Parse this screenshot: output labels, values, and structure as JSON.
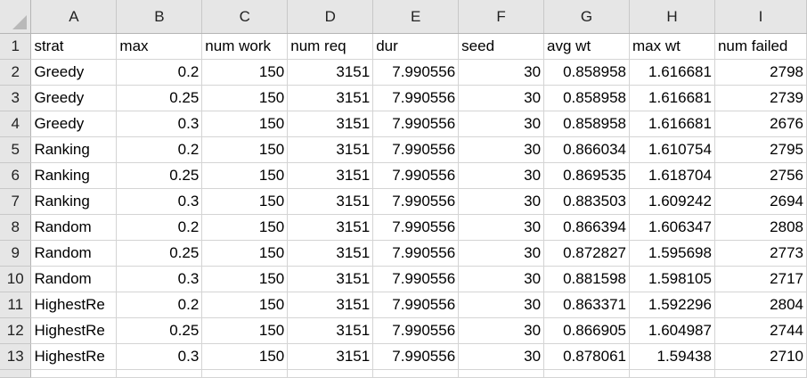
{
  "columns": [
    "A",
    "B",
    "C",
    "D",
    "E",
    "F",
    "G",
    "H",
    "I"
  ],
  "rows": [
    {
      "num": "1",
      "cells": [
        "strat",
        "max",
        "num work",
        "num req",
        "dur",
        "seed",
        "avg wt",
        "max wt",
        "num failed"
      ]
    },
    {
      "num": "2",
      "cells": [
        "Greedy",
        "0.2",
        "150",
        "3151",
        "7.990556",
        "30",
        "0.858958",
        "1.616681",
        "2798"
      ]
    },
    {
      "num": "3",
      "cells": [
        "Greedy",
        "0.25",
        "150",
        "3151",
        "7.990556",
        "30",
        "0.858958",
        "1.616681",
        "2739"
      ]
    },
    {
      "num": "4",
      "cells": [
        "Greedy",
        "0.3",
        "150",
        "3151",
        "7.990556",
        "30",
        "0.858958",
        "1.616681",
        "2676"
      ]
    },
    {
      "num": "5",
      "cells": [
        "Ranking",
        "0.2",
        "150",
        "3151",
        "7.990556",
        "30",
        "0.866034",
        "1.610754",
        "2795"
      ]
    },
    {
      "num": "6",
      "cells": [
        "Ranking",
        "0.25",
        "150",
        "3151",
        "7.990556",
        "30",
        "0.869535",
        "1.618704",
        "2756"
      ]
    },
    {
      "num": "7",
      "cells": [
        "Ranking",
        "0.3",
        "150",
        "3151",
        "7.990556",
        "30",
        "0.883503",
        "1.609242",
        "2694"
      ]
    },
    {
      "num": "8",
      "cells": [
        "Random",
        "0.2",
        "150",
        "3151",
        "7.990556",
        "30",
        "0.866394",
        "1.606347",
        "2808"
      ]
    },
    {
      "num": "9",
      "cells": [
        "Random",
        "0.25",
        "150",
        "3151",
        "7.990556",
        "30",
        "0.872827",
        "1.595698",
        "2773"
      ]
    },
    {
      "num": "10",
      "cells": [
        "Random",
        "0.3",
        "150",
        "3151",
        "7.990556",
        "30",
        "0.881598",
        "1.598105",
        "2717"
      ]
    },
    {
      "num": "11",
      "cells": [
        "HighestRe",
        "0.2",
        "150",
        "3151",
        "7.990556",
        "30",
        "0.863371",
        "1.592296",
        "2804"
      ]
    },
    {
      "num": "12",
      "cells": [
        "HighestRe",
        "0.25",
        "150",
        "3151",
        "7.990556",
        "30",
        "0.866905",
        "1.604987",
        "2744"
      ]
    },
    {
      "num": "13",
      "cells": [
        "HighestRe",
        "0.3",
        "150",
        "3151",
        "7.990556",
        "30",
        "0.878061",
        "1.59438",
        "2710"
      ]
    }
  ]
}
